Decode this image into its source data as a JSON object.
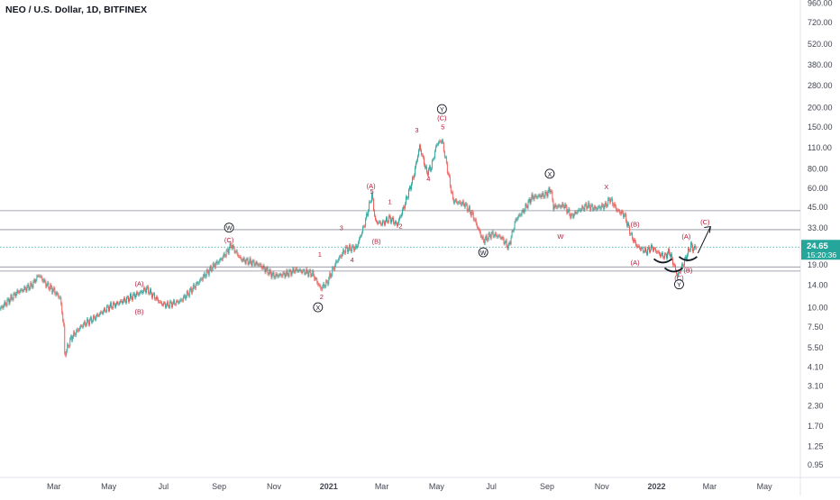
{
  "chart_data": {
    "type": "candlestick",
    "title": "NEO / U.S. Dollar, 1D, BITFINEX",
    "y_scale": "log",
    "ylim": [
      0.78,
      1000
    ],
    "y_ticks": [
      {
        "v": 960,
        "label": "960.00"
      },
      {
        "v": 720,
        "label": "720.00"
      },
      {
        "v": 520,
        "label": "520.00"
      },
      {
        "v": 380,
        "label": "380.00"
      },
      {
        "v": 280,
        "label": "280.00"
      },
      {
        "v": 200,
        "label": "200.00"
      },
      {
        "v": 150,
        "label": "150.00"
      },
      {
        "v": 110,
        "label": "110.00"
      },
      {
        "v": 80,
        "label": "80.00"
      },
      {
        "v": 60,
        "label": "60.00"
      },
      {
        "v": 45,
        "label": "45.00"
      },
      {
        "v": 33,
        "label": "33.00"
      },
      {
        "v": 19,
        "label": "19.00"
      },
      {
        "v": 14,
        "label": "14.00"
      },
      {
        "v": 10,
        "label": "10.00"
      },
      {
        "v": 7.5,
        "label": "7.50"
      },
      {
        "v": 5.5,
        "label": "5.50"
      },
      {
        "v": 4.1,
        "label": "4.10"
      },
      {
        "v": 3.1,
        "label": "3.10"
      },
      {
        "v": 2.3,
        "label": "2.30"
      },
      {
        "v": 1.7,
        "label": "1.70"
      },
      {
        "v": 1.25,
        "label": "1.25"
      },
      {
        "v": 0.95,
        "label": "0.95"
      }
    ],
    "x_start": "2020-01-01",
    "x_end": "2022-06-10",
    "x_ticks": [
      {
        "date": "2020-03-01",
        "label": "Mar",
        "bold": false
      },
      {
        "date": "2020-05-01",
        "label": "May",
        "bold": false
      },
      {
        "date": "2020-07-01",
        "label": "Jul",
        "bold": false
      },
      {
        "date": "2020-09-01",
        "label": "Sep",
        "bold": false
      },
      {
        "date": "2020-11-01",
        "label": "Nov",
        "bold": false
      },
      {
        "date": "2021-01-01",
        "label": "2021",
        "bold": true
      },
      {
        "date": "2021-03-01",
        "label": "Mar",
        "bold": false
      },
      {
        "date": "2021-05-01",
        "label": "May",
        "bold": false
      },
      {
        "date": "2021-07-01",
        "label": "Jul",
        "bold": false
      },
      {
        "date": "2021-09-01",
        "label": "Sep",
        "bold": false
      },
      {
        "date": "2021-11-01",
        "label": "Nov",
        "bold": false
      },
      {
        "date": "2022-01-01",
        "label": "2022",
        "bold": true
      },
      {
        "date": "2022-03-01",
        "label": "Mar",
        "bold": false
      },
      {
        "date": "2022-05-01",
        "label": "May",
        "bold": false
      }
    ],
    "price_path": [
      [
        "2020-01-01",
        9.8
      ],
      [
        "2020-01-20",
        12.5
      ],
      [
        "2020-02-05",
        13.8
      ],
      [
        "2020-02-13",
        16.2
      ],
      [
        "2020-02-22",
        14.0
      ],
      [
        "2020-03-01",
        12.8
      ],
      [
        "2020-03-08",
        11.5
      ],
      [
        "2020-03-12",
        7.5
      ],
      [
        "2020-03-13",
        4.9
      ],
      [
        "2020-03-20",
        6.3
      ],
      [
        "2020-04-01",
        7.6
      ],
      [
        "2020-04-15",
        8.5
      ],
      [
        "2020-05-01",
        10.0
      ],
      [
        "2020-05-20",
        11.2
      ],
      [
        "2020-06-05",
        12.5
      ],
      [
        "2020-06-12",
        13.2
      ],
      [
        "2020-06-28",
        10.6
      ],
      [
        "2020-07-05",
        10.3
      ],
      [
        "2020-07-20",
        11.0
      ],
      [
        "2020-08-01",
        13.0
      ],
      [
        "2020-08-15",
        16.0
      ],
      [
        "2020-08-25",
        18.5
      ],
      [
        "2020-09-01",
        20.0
      ],
      [
        "2020-09-10",
        23.0
      ],
      [
        "2020-09-14",
        25.5
      ],
      [
        "2020-09-25",
        20.5
      ],
      [
        "2020-10-15",
        19.0
      ],
      [
        "2020-11-01",
        16.0
      ],
      [
        "2020-11-15",
        16.5
      ],
      [
        "2020-11-25",
        17.5
      ],
      [
        "2020-12-05",
        17.0
      ],
      [
        "2020-12-14",
        16.5
      ],
      [
        "2020-12-23",
        13.2
      ],
      [
        "2020-12-30",
        14.5
      ],
      [
        "2021-01-10",
        20.0
      ],
      [
        "2021-01-20",
        24.0
      ],
      [
        "2021-02-01",
        24.5
      ],
      [
        "2021-02-10",
        35.0
      ],
      [
        "2021-02-18",
        54.0
      ],
      [
        "2021-02-22",
        36.0
      ],
      [
        "2021-03-01",
        35.0
      ],
      [
        "2021-03-10",
        38.0
      ],
      [
        "2021-03-18",
        34.5
      ],
      [
        "2021-03-25",
        44.0
      ],
      [
        "2021-04-05",
        70.0
      ],
      [
        "2021-04-12",
        112.0
      ],
      [
        "2021-04-20",
        75.0
      ],
      [
        "2021-04-25",
        82.0
      ],
      [
        "2021-05-01",
        115.0
      ],
      [
        "2021-05-07",
        122.0
      ],
      [
        "2021-05-12",
        85.0
      ],
      [
        "2021-05-19",
        50.0
      ],
      [
        "2021-05-25",
        48.0
      ],
      [
        "2021-06-01",
        47.0
      ],
      [
        "2021-06-10",
        40.0
      ],
      [
        "2021-06-22",
        27.0
      ],
      [
        "2021-07-01",
        30.0
      ],
      [
        "2021-07-12",
        28.5
      ],
      [
        "2021-07-20",
        24.5
      ],
      [
        "2021-07-28",
        37.0
      ],
      [
        "2021-08-05",
        42.0
      ],
      [
        "2021-08-15",
        52.0
      ],
      [
        "2021-08-30",
        54.0
      ],
      [
        "2021-09-05",
        59.0
      ],
      [
        "2021-09-08",
        45.0
      ],
      [
        "2021-09-20",
        46.0
      ],
      [
        "2021-09-28",
        39.0
      ],
      [
        "2021-10-05",
        42.0
      ],
      [
        "2021-10-15",
        46.0
      ],
      [
        "2021-10-25",
        44.0
      ],
      [
        "2021-11-05",
        46.0
      ],
      [
        "2021-11-10",
        51.0
      ],
      [
        "2021-11-18",
        43.0
      ],
      [
        "2021-11-26",
        40.0
      ],
      [
        "2021-12-04",
        29.0
      ],
      [
        "2021-12-10",
        25.0
      ],
      [
        "2021-12-20",
        23.0
      ],
      [
        "2021-12-27",
        24.5
      ],
      [
        "2022-01-05",
        22.0
      ],
      [
        "2022-01-10",
        21.5
      ],
      [
        "2022-01-15",
        23.0
      ],
      [
        "2022-01-22",
        17.5
      ],
      [
        "2022-01-24",
        16.0
      ],
      [
        "2022-02-01",
        20.0
      ],
      [
        "2022-02-08",
        25.5
      ],
      [
        "2022-02-10",
        24.0
      ],
      [
        "2022-02-14",
        24.65
      ]
    ],
    "horizontal_levels": [
      {
        "value": 42.5,
        "style": "solid",
        "color": "#8a8e99"
      },
      {
        "value": 32.0,
        "style": "solid",
        "color": "#8a8e99"
      },
      {
        "value": 24.65,
        "style": "dotted",
        "color": "#26a69a"
      },
      {
        "value": 18.3,
        "style": "solid",
        "color": "#8a8e99"
      },
      {
        "value": 17.2,
        "style": "solid",
        "color": "#8a8e99"
      }
    ],
    "wave_labels": [
      {
        "date": "2020-06-04",
        "v": 14.3,
        "text": "(A)",
        "circled": false
      },
      {
        "date": "2020-06-04",
        "v": 9.4,
        "text": "(B)",
        "circled": false
      },
      {
        "date": "2020-09-12",
        "v": 27.5,
        "text": "(C)",
        "circled": false
      },
      {
        "date": "2020-09-12",
        "v": 33.0,
        "text": "W",
        "circled": true
      },
      {
        "date": "2020-12-24",
        "v": 11.8,
        "text": "2",
        "circled": false
      },
      {
        "date": "2020-12-20",
        "v": 10.0,
        "text": "X",
        "circled": true
      },
      {
        "date": "2020-12-22",
        "v": 22.2,
        "text": "1",
        "circled": false
      },
      {
        "date": "2021-01-15",
        "v": 33.0,
        "text": "3",
        "circled": false
      },
      {
        "date": "2021-01-27",
        "v": 20.5,
        "text": "4",
        "circled": false
      },
      {
        "date": "2021-02-17",
        "v": 62.0,
        "text": "(A)",
        "circled": false
      },
      {
        "date": "2021-02-18",
        "v": 57.0,
        "text": "5",
        "circled": false
      },
      {
        "date": "2021-02-23",
        "v": 27.0,
        "text": "(B)",
        "circled": false
      },
      {
        "date": "2021-03-10",
        "v": 49.0,
        "text": "1",
        "circled": false
      },
      {
        "date": "2021-03-22",
        "v": 34.0,
        "text": "2",
        "circled": false
      },
      {
        "date": "2021-04-09",
        "v": 143.0,
        "text": "3",
        "circled": false
      },
      {
        "date": "2021-04-22",
        "v": 69.0,
        "text": "4",
        "circled": false
      },
      {
        "date": "2021-05-07",
        "v": 172.0,
        "text": "(C)",
        "circled": false
      },
      {
        "date": "2021-05-08",
        "v": 150.0,
        "text": "5",
        "circled": false
      },
      {
        "date": "2021-05-07",
        "v": 195.0,
        "text": "Y",
        "circled": true
      },
      {
        "date": "2021-06-22",
        "v": 22.8,
        "text": "W",
        "circled": true
      },
      {
        "date": "2021-09-04",
        "v": 74.0,
        "text": "X",
        "circled": true
      },
      {
        "date": "2021-09-16",
        "v": 29.0,
        "text": "W",
        "circled": false
      },
      {
        "date": "2021-11-06",
        "v": 61.0,
        "text": "X",
        "circled": false
      },
      {
        "date": "2021-12-08",
        "v": 35.0,
        "text": "(B)",
        "circled": false
      },
      {
        "date": "2021-12-08",
        "v": 19.6,
        "text": "(A)",
        "circled": false
      },
      {
        "date": "2022-02-03",
        "v": 29.0,
        "text": "(A)",
        "circled": false
      },
      {
        "date": "2022-02-05",
        "v": 17.5,
        "text": "(B)",
        "circled": false
      },
      {
        "date": "2022-01-26",
        "v": 15.6,
        "text": "(C)",
        "circled": false
      },
      {
        "date": "2022-01-26",
        "v": 14.1,
        "text": "Y",
        "circled": true
      },
      {
        "date": "2022-02-24",
        "v": 36.0,
        "text": "(C)",
        "circled": false
      }
    ],
    "last_price": {
      "value": "24.65",
      "countdown": "15:20:36",
      "color": "#26a69a"
    },
    "up_color": "#26a69a",
    "down_color": "#ef5350",
    "label_color": "#b71c3a"
  }
}
